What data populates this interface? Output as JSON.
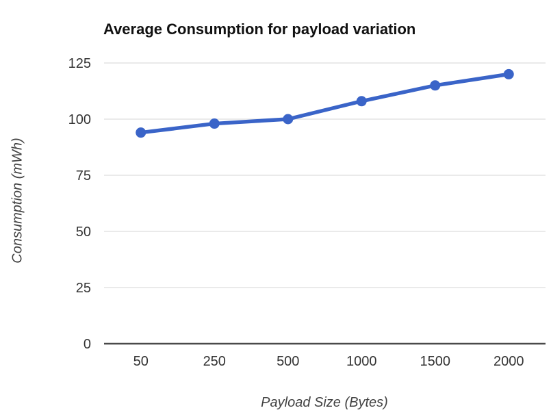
{
  "chart_data": {
    "type": "line",
    "title": "Average Consumption for payload variation",
    "xlabel": "Payload Size (Bytes)",
    "ylabel": "Consumption (mWh)",
    "categories": [
      "50",
      "250",
      "500",
      "1000",
      "1500",
      "2000"
    ],
    "values": [
      94,
      98,
      100,
      108,
      115,
      120
    ],
    "ylim": [
      0,
      125
    ],
    "yticks": [
      0,
      25,
      50,
      75,
      100,
      125
    ],
    "grid": true,
    "legend": "none",
    "marker": "circle",
    "colors": {
      "line": "#3a64c8",
      "point": "#3a64c8",
      "gridline": "#e3e3e3",
      "axis_line": "#4a4a4a",
      "tick_label": "#333333",
      "title": "#111111",
      "axis_title": "#424242",
      "background": "#ffffff"
    }
  }
}
